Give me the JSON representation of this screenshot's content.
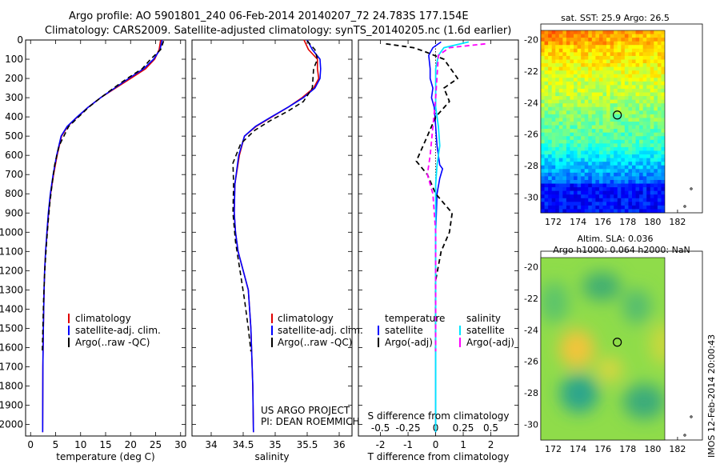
{
  "header": {
    "line1": "Argo profile: AO 5901801_240 06-Feb-2014 20140207_72 24.783S 177.154E",
    "line2": "Climatology: CARS2009. Satellite-adjusted climatology: synTS_20140205.nc (1.6d earlier)"
  },
  "credit": {
    "line1": "US ARGO PROJECT",
    "line2": "PI: DEAN ROEMMICH"
  },
  "timestamp": "IMOS 12-Feb-2014 20:00:43",
  "colors": {
    "climatology": "#e00000",
    "satellite": "#0000ff",
    "argo": "#000000",
    "sat_t": "#00e5ff",
    "argo_s": "#ff00ff"
  },
  "chart_data": [
    {
      "type": "line",
      "id": "temperature",
      "xlabel": "temperature (deg C)",
      "ylabel": "",
      "xlim": [
        -1,
        31
      ],
      "ylim": [
        2060,
        0
      ],
      "xticks": [
        0,
        5,
        10,
        15,
        20,
        25,
        30
      ],
      "yticks": [
        0,
        100,
        200,
        300,
        400,
        500,
        600,
        700,
        800,
        900,
        1000,
        1100,
        1200,
        1300,
        1400,
        1500,
        1600,
        1700,
        1800,
        1900,
        2000
      ],
      "legend": [
        "climatology",
        "satellite-adj. clim.",
        "Argo(..raw -QC)"
      ],
      "series": [
        {
          "name": "climatology",
          "x": [
            26.0,
            25.7,
            24.8,
            23.0,
            20.0,
            17.0,
            14.0,
            11.5,
            9.4,
            7.4,
            6.2,
            5.3,
            4.6,
            4.0,
            3.6,
            3.3,
            3.0,
            2.8,
            2.7,
            2.55,
            2.45,
            2.4
          ],
          "y": [
            0,
            50,
            100,
            150,
            200,
            250,
            300,
            350,
            400,
            450,
            500,
            600,
            700,
            800,
            900,
            1000,
            1100,
            1200,
            1300,
            1500,
            1700,
            2040
          ]
        },
        {
          "name": "satellite-adj. clim.",
          "x": [
            26.3,
            25.9,
            24.6,
            22.6,
            19.6,
            16.8,
            14.0,
            11.5,
            9.3,
            7.3,
            6.1,
            5.2,
            4.5,
            3.95,
            3.55,
            3.25,
            3.0,
            2.8,
            2.7,
            2.55,
            2.45,
            2.4
          ],
          "y": [
            0,
            50,
            100,
            150,
            200,
            250,
            300,
            350,
            400,
            450,
            500,
            600,
            700,
            800,
            900,
            1000,
            1100,
            1200,
            1300,
            1500,
            1700,
            2040
          ]
        },
        {
          "name": "Argo(..raw -QC)",
          "x": [
            26.6,
            26.0,
            24.0,
            22.3,
            19.3,
            16.6,
            14.0,
            11.6,
            9.6,
            7.6,
            5.7,
            4.8,
            4.3,
            3.85,
            3.5,
            3.2,
            2.95,
            2.75,
            2.6,
            2.45,
            2.35
          ],
          "y": [
            5,
            50,
            100,
            150,
            200,
            250,
            300,
            350,
            400,
            450,
            550,
            650,
            750,
            850,
            950,
            1050,
            1150,
            1250,
            1350,
            1500,
            1620
          ]
        }
      ]
    },
    {
      "type": "line",
      "id": "salinity",
      "xlabel": "salinity",
      "ylabel": "",
      "xlim": [
        33.7,
        36.2
      ],
      "ylim": [
        2060,
        0
      ],
      "xticks": [
        34,
        34.5,
        35,
        35.5,
        36
      ],
      "legend": [
        "climatology",
        "satellite-adj. clim.",
        "Argo(..raw -QC)"
      ],
      "series": [
        {
          "name": "climatology",
          "x": [
            35.45,
            35.52,
            35.66,
            35.66,
            35.68,
            35.6,
            35.42,
            35.2,
            34.95,
            34.7,
            34.52,
            34.44,
            34.37,
            34.36,
            34.38,
            34.42,
            34.5,
            34.58,
            34.62,
            34.65,
            34.66
          ],
          "y": [
            0,
            50,
            100,
            150,
            200,
            250,
            300,
            350,
            400,
            450,
            500,
            600,
            750,
            900,
            1000,
            1100,
            1200,
            1300,
            1500,
            1800,
            2040
          ]
        },
        {
          "name": "satellite-adj. clim.",
          "x": [
            35.5,
            35.58,
            35.7,
            35.71,
            35.7,
            35.62,
            35.44,
            35.2,
            34.94,
            34.69,
            34.52,
            34.43,
            34.37,
            34.36,
            34.38,
            34.42,
            34.5,
            34.58,
            34.62,
            34.65,
            34.66
          ],
          "y": [
            0,
            50,
            100,
            150,
            200,
            250,
            300,
            350,
            400,
            450,
            500,
            600,
            750,
            900,
            1000,
            1100,
            1200,
            1300,
            1500,
            1800,
            2040
          ]
        },
        {
          "name": "Argo(..raw -QC)",
          "x": [
            35.5,
            35.62,
            35.66,
            35.6,
            35.58,
            35.44,
            35.2,
            34.92,
            34.68,
            34.46,
            34.34,
            34.35,
            34.34,
            34.38,
            34.45,
            34.52,
            34.58,
            34.62
          ],
          "y": [
            5,
            50,
            100,
            150,
            250,
            320,
            370,
            420,
            470,
            540,
            640,
            750,
            900,
            1050,
            1200,
            1350,
            1500,
            1620
          ]
        }
      ]
    },
    {
      "type": "line",
      "id": "difference",
      "xlabel": "T difference from climatology",
      "xlabel_top": "S difference from climatology",
      "xlim": [
        -2.8,
        3.0
      ],
      "ylim": [
        2060,
        0
      ],
      "xticks": [
        -2,
        -1,
        0,
        1,
        2
      ],
      "xticks_top": [
        "-0.5",
        "-0.25",
        "0",
        "0.25",
        "0.5"
      ],
      "legend_temperature_title": "temperature",
      "legend_salinity_title": "salinity",
      "legend": [
        "satellite",
        "Argo(-adj)",
        "satellite",
        "Argo(-adj)"
      ],
      "series": [
        {
          "name": "temperature satellite",
          "x": [
            0.2,
            -0.1,
            -0.25,
            -0.2,
            -0.2,
            -0.1,
            -0.15,
            -0.05,
            0.0,
            0.05,
            0.1,
            0.15,
            0.25,
            0.15,
            0.05,
            0.0,
            0.0,
            0.0
          ],
          "y": [
            10,
            40,
            80,
            150,
            200,
            250,
            300,
            350,
            450,
            550,
            600,
            650,
            670,
            720,
            800,
            1000,
            1500,
            2040
          ]
        },
        {
          "name": "temperature Argo(-adj)",
          "x": [
            -1.8,
            -0.8,
            -0.4,
            0.3,
            0.8,
            0.3,
            0.5,
            0.0,
            -0.3,
            -0.7,
            -0.3,
            0.0,
            0.6,
            0.5,
            0.2,
            0.0,
            0.0
          ],
          "y": [
            20,
            40,
            60,
            100,
            200,
            250,
            320,
            400,
            500,
            630,
            700,
            800,
            900,
            1000,
            1100,
            1250,
            1620
          ]
        },
        {
          "name": "salinity satellite",
          "x": [
            1.2,
            0.3,
            0.1,
            0.0,
            0.0,
            0.0,
            0.1,
            0.15,
            0.05,
            0.0,
            0.0,
            0.0,
            0.0
          ],
          "y": [
            10,
            40,
            80,
            150,
            250,
            350,
            450,
            550,
            650,
            750,
            900,
            1500,
            2040
          ]
        },
        {
          "name": "salinity Argo(-adj)",
          "x": [
            1.8,
            0.5,
            0.1,
            0.0,
            -0.2,
            -0.3,
            -0.1,
            0.0,
            0.0
          ],
          "y": [
            20,
            40,
            80,
            300,
            600,
            700,
            800,
            1000,
            1620
          ]
        }
      ]
    },
    {
      "type": "heatmap",
      "id": "sst-map",
      "title": "sat. SST: 25.9 Argo: 26.5",
      "xticks": [
        "172",
        "174",
        "176",
        "178",
        "180",
        "182"
      ],
      "yticks": [
        "-20",
        "-22",
        "-24",
        "-26",
        "-28",
        "-30"
      ],
      "xlim": [
        171,
        184
      ],
      "ylim": [
        -31,
        -19
      ],
      "marker": [
        177.154,
        -24.783
      ]
    },
    {
      "type": "heatmap",
      "id": "sla-map",
      "title": "Altim. SLA: 0.036",
      "subtitle": "Argo h1000: 0.064 h2000: NaN",
      "xticks": [
        "172",
        "174",
        "176",
        "178",
        "180",
        "182"
      ],
      "yticks": [
        "-20",
        "-22",
        "-24",
        "-26",
        "-28",
        "-30"
      ],
      "xlim": [
        171,
        184
      ],
      "ylim": [
        -31,
        -19
      ],
      "marker": [
        177.154,
        -24.783
      ]
    }
  ]
}
